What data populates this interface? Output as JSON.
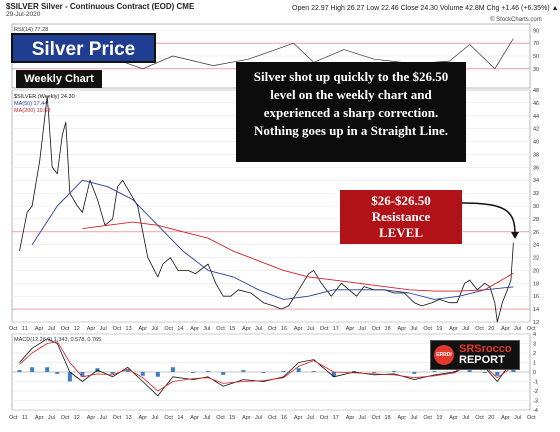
{
  "header": {
    "title": "$SILVER Silver - Continuous Contract (EOD) CME",
    "date": "29-Jul-2020",
    "ohlc": "Open 22.97  High 26.27  Low 22.46  Close 24.30  Volume 42.8M  Chg +1.46 (+6.35%) ▲",
    "credit": "© StockCharts.com"
  },
  "overlay": {
    "title": "Silver Price",
    "subtitle": "Weekly Chart",
    "annotation": "Silver shot up quickly to the $26.50 level on the weekly chart and experienced a sharp correction.  Nothing goes up in a Straight Line.",
    "resistance_line1": "$26-$26.50",
    "resistance_line2": "Resistance",
    "resistance_line3": "LEVEL",
    "logo_badge": "ERRDI",
    "logo_top": "SRSrocco",
    "logo_bottom": "REPORT"
  },
  "colors": {
    "price": "#111111",
    "ma50": "#2b3f9e",
    "ma200": "#d0232a",
    "rsi": "#333333",
    "macd": "#111111",
    "signal": "#d0232a",
    "histogram": "#3f7fbf",
    "grid": "#e3e3e3",
    "refline": "#e07070",
    "resistance_box": "#b11217",
    "title_box": "#1f3e91"
  },
  "chart_data": [
    {
      "type": "line",
      "panel": "RSI",
      "legend": [
        "RSI(14) 77.28"
      ],
      "ylim": [
        0,
        100
      ],
      "yticks": [
        30,
        50,
        70,
        90
      ],
      "x": [
        2010.75,
        2011.3,
        2011.6,
        2012.3,
        2013.2,
        2013.8,
        2014.6,
        2015.3,
        2016.2,
        2016.6,
        2017.2,
        2017.8,
        2018.6,
        2019.3,
        2019.7,
        2020.2,
        2020.57
      ],
      "values": [
        65,
        85,
        40,
        55,
        30,
        50,
        35,
        45,
        70,
        40,
        60,
        45,
        38,
        42,
        68,
        30,
        77.28
      ]
    },
    {
      "type": "line",
      "panel": "Price",
      "legend": [
        "$SILVER (Weekly) 24.30",
        "MA(50) 17.44",
        "MA(200) 19.58"
      ],
      "ylim": [
        12,
        48
      ],
      "yticks": [
        12,
        14,
        16,
        18,
        20,
        22,
        24,
        26,
        28,
        30,
        32,
        34,
        36,
        38,
        40,
        42,
        44,
        46,
        48
      ],
      "xlabels": [
        "Oct",
        "11",
        "Apr",
        "Jul",
        "Oct",
        "12",
        "Apr",
        "Jul",
        "Oct",
        "13",
        "Apr",
        "Jul",
        "Oct",
        "14",
        "Apr",
        "Jul",
        "Oct",
        "15",
        "Apr",
        "Jul",
        "Oct",
        "16",
        "Apr",
        "Jul",
        "Oct",
        "17",
        "Apr",
        "Jul",
        "Oct",
        "18",
        "Apr",
        "Jul",
        "Oct",
        "19",
        "Apr",
        "Jul",
        "Oct",
        "20",
        "Apr",
        "Jul",
        "Oct"
      ],
      "series": [
        {
          "name": "$SILVER (Weekly)",
          "x": [
            2010.75,
            2010.9,
            2011.0,
            2011.15,
            2011.3,
            2011.33,
            2011.4,
            2011.5,
            2011.6,
            2011.67,
            2011.75,
            2011.9,
            2012.0,
            2012.15,
            2012.3,
            2012.45,
            2012.6,
            2012.7,
            2012.8,
            2012.95,
            2013.1,
            2013.3,
            2013.5,
            2013.6,
            2013.75,
            2013.9,
            2014.1,
            2014.25,
            2014.5,
            2014.65,
            2014.8,
            2014.95,
            2015.1,
            2015.35,
            2015.6,
            2015.8,
            2015.95,
            2016.1,
            2016.3,
            2016.5,
            2016.6,
            2016.75,
            2016.95,
            2017.15,
            2017.3,
            2017.45,
            2017.6,
            2017.8,
            2018.0,
            2018.2,
            2018.4,
            2018.6,
            2018.75,
            2018.95,
            2019.1,
            2019.3,
            2019.45,
            2019.6,
            2019.7,
            2019.85,
            2020.0,
            2020.1,
            2020.2,
            2020.25,
            2020.35,
            2020.45,
            2020.52,
            2020.57
          ],
          "values": [
            23,
            29,
            30,
            37,
            47,
            44,
            36,
            35,
            41,
            43,
            32,
            30,
            29,
            34,
            31,
            27,
            28,
            33,
            34,
            32,
            30,
            22,
            19,
            21,
            22,
            20,
            20,
            19.5,
            21,
            18,
            16,
            16,
            17,
            16.5,
            15,
            14.5,
            14,
            14.5,
            17,
            19.5,
            20,
            18,
            16,
            18,
            17,
            16,
            17.5,
            17,
            17,
            16.5,
            16.5,
            15,
            14.5,
            15,
            15.5,
            15,
            15,
            18,
            18.5,
            17,
            18,
            17.5,
            15,
            12,
            15,
            17,
            18.5,
            24.3
          ]
        },
        {
          "name": "MA(50)",
          "x": [
            2011.0,
            2011.5,
            2012.0,
            2012.5,
            2013.0,
            2013.5,
            2014.0,
            2014.5,
            2015.0,
            2015.5,
            2016.0,
            2016.5,
            2017.0,
            2017.5,
            2018.0,
            2018.5,
            2019.0,
            2019.5,
            2020.0,
            2020.57
          ],
          "values": [
            24,
            30,
            34,
            33,
            31,
            27,
            23,
            20,
            19,
            17,
            15.5,
            16,
            17,
            17,
            17,
            16.5,
            15.5,
            16,
            17,
            17.44
          ]
        },
        {
          "name": "MA(200)",
          "x": [
            2012.0,
            2012.5,
            2013.0,
            2013.5,
            2014.0,
            2014.5,
            2015.0,
            2015.5,
            2016.0,
            2016.5,
            2017.0,
            2017.5,
            2018.0,
            2018.5,
            2019.0,
            2019.5,
            2020.0,
            2020.57
          ],
          "values": [
            26.5,
            27,
            27.5,
            27,
            26,
            25,
            23,
            21.5,
            20,
            19,
            18.5,
            18,
            17.5,
            17,
            16.8,
            16.8,
            17,
            19.58
          ]
        }
      ]
    },
    {
      "type": "line",
      "panel": "MACD",
      "legend": [
        "MACD(12,26,9) 1.343, 0.578, 0.765"
      ],
      "ylim": [
        -4,
        4
      ],
      "yticks": [
        -4,
        -3,
        -2,
        -1,
        0,
        1,
        2,
        3,
        4
      ],
      "xlabels": [
        "Oct",
        "11",
        "Apr",
        "Jul",
        "Oct",
        "12",
        "Apr",
        "Jul",
        "Oct",
        "13",
        "Apr",
        "Jul",
        "Oct",
        "14",
        "Apr",
        "Jul",
        "Oct",
        "15",
        "Apr",
        "Jul",
        "Oct",
        "16",
        "Apr",
        "Jul",
        "Oct",
        "17",
        "Apr",
        "Jul",
        "Oct",
        "18",
        "Apr",
        "Jul",
        "Oct",
        "19",
        "Apr",
        "Jul",
        "Oct",
        "20",
        "Apr",
        "Jul",
        "Oct"
      ],
      "series": [
        {
          "name": "MACD",
          "x": [
            2010.75,
            2011.0,
            2011.3,
            2011.5,
            2011.75,
            2012.0,
            2012.3,
            2012.6,
            2012.9,
            2013.2,
            2013.5,
            2013.8,
            2014.2,
            2014.5,
            2014.8,
            2015.2,
            2015.6,
            2016.0,
            2016.3,
            2016.6,
            2017.0,
            2017.4,
            2017.8,
            2018.2,
            2018.6,
            2019.0,
            2019.4,
            2019.7,
            2020.0,
            2020.25,
            2020.57
          ],
          "values": [
            1,
            2.5,
            3.5,
            3,
            0,
            -1,
            0.2,
            -0.5,
            0.5,
            -1,
            -2.5,
            -0.5,
            -0.8,
            -0.5,
            -1.5,
            -0.8,
            -1,
            -0.5,
            1,
            1.3,
            -0.5,
            0,
            -0.3,
            -0.2,
            -0.8,
            -0.3,
            0,
            1,
            0.5,
            -1,
            1.343
          ]
        },
        {
          "name": "Signal",
          "x": [
            2010.75,
            2011.0,
            2011.3,
            2011.5,
            2011.75,
            2012.0,
            2012.3,
            2012.6,
            2012.9,
            2013.2,
            2013.5,
            2013.8,
            2014.2,
            2014.5,
            2014.8,
            2015.2,
            2015.6,
            2016.0,
            2016.3,
            2016.6,
            2017.0,
            2017.4,
            2017.8,
            2018.2,
            2018.6,
            2019.0,
            2019.4,
            2019.7,
            2020.0,
            2020.25,
            2020.57
          ],
          "values": [
            0.8,
            2,
            3,
            3.2,
            1,
            -0.5,
            -0.2,
            -0.3,
            0.3,
            -0.6,
            -2,
            -1,
            -0.7,
            -0.6,
            -1.2,
            -1,
            -0.9,
            -0.6,
            0.6,
            1.2,
            0,
            -0.1,
            -0.2,
            -0.3,
            -0.6,
            -0.4,
            -0.1,
            0.8,
            0.6,
            -0.6,
            0.578
          ]
        }
      ]
    }
  ]
}
